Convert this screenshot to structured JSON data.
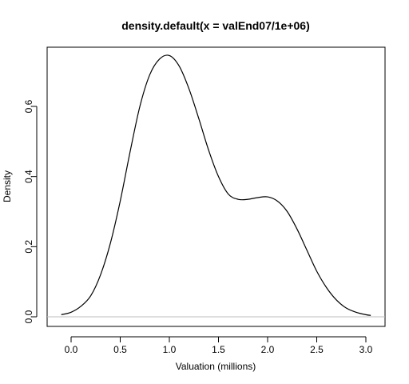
{
  "chart_data": {
    "type": "line",
    "title": "density.default(x = valEnd07/1e+06)",
    "xlabel": "Valuation (millions)",
    "ylabel": "Density",
    "xlim": [
      -0.1,
      3.1
    ],
    "ylim": [
      0,
      0.75
    ],
    "x_ticks": [
      0,
      0.5,
      1,
      1.5,
      2,
      2.5,
      3
    ],
    "x_tick_labels": [
      "0.0",
      "0.5",
      "1.0",
      "1.5",
      "2.0",
      "2.5",
      "3.0"
    ],
    "y_ticks": [
      0,
      0.2,
      0.4,
      0.6
    ],
    "y_tick_labels": [
      "0.0",
      "0.2",
      "0.4",
      "0.6"
    ],
    "baseline": 0,
    "grid": false,
    "legend": "none",
    "series": [
      {
        "color": "#000000",
        "x": [
          -0.1,
          0.0,
          0.1,
          0.2,
          0.3,
          0.4,
          0.5,
          0.6,
          0.7,
          0.8,
          0.9,
          1.0,
          1.1,
          1.2,
          1.3,
          1.4,
          1.5,
          1.6,
          1.7,
          1.8,
          1.9,
          2.0,
          2.1,
          2.2,
          2.3,
          2.4,
          2.5,
          2.6,
          2.7,
          2.8,
          2.9,
          3.0,
          3.05
        ],
        "y": [
          0.006,
          0.013,
          0.03,
          0.06,
          0.12,
          0.21,
          0.33,
          0.47,
          0.6,
          0.69,
          0.735,
          0.745,
          0.715,
          0.65,
          0.565,
          0.475,
          0.4,
          0.35,
          0.335,
          0.335,
          0.34,
          0.342,
          0.33,
          0.3,
          0.25,
          0.19,
          0.13,
          0.083,
          0.048,
          0.025,
          0.013,
          0.006,
          0.004
        ]
      }
    ]
  }
}
